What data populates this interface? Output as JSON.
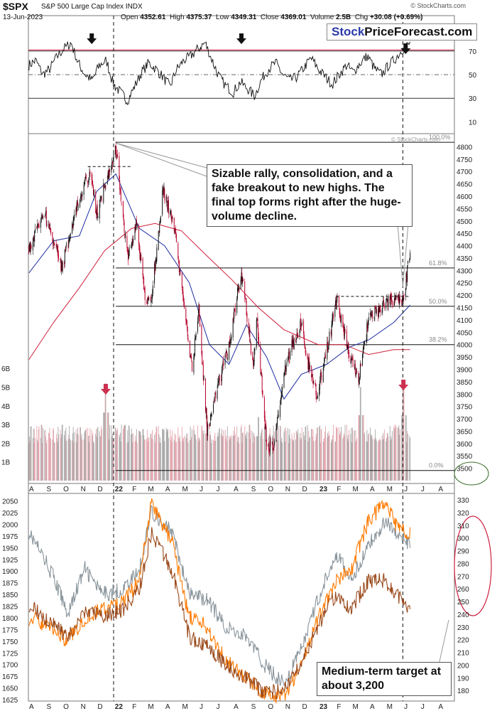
{
  "header": {
    "symbol": "$SPX",
    "name": "S&P 500 Large Cap Index  INDX",
    "date": "13-Jun-2023",
    "open_label": "Open",
    "open": "4352.61",
    "high_label": "High",
    "high": "4375.37",
    "low_label": "Low",
    "low": "4349.31",
    "close_label": "Close",
    "close": "4369.01",
    "volume_label": "Volume",
    "volume": "2.5B",
    "chg_label": "Chg",
    "chg": "+30.08 (+0.69%)",
    "copyright": "© StockCharts.com",
    "watermark": "© StockCharts.com"
  },
  "brand": {
    "part1": "Stock",
    "part2": "PriceForecast.com"
  },
  "annotations": {
    "main_note": "Sizable rally, consolidation, and a fake breakout to new highs. The final top forms right after the huge-volume decline.",
    "bottom_note": "Medium-term target at about 3,200"
  },
  "colors": {
    "price_up": "#111111",
    "price_down": "#b8002a",
    "ma_fast": "#1f2fa0",
    "ma_slow": "#d0203a",
    "vol_up": "#a8a8a8",
    "vol_down": "#e4a6ae",
    "series_gray": "#8a959c",
    "series_orange": "#ff7a00",
    "series_brown": "#9a4a1c",
    "highlight_red": "#cc2040",
    "ellipse_green": "#3a6e2a",
    "arrow": "#111111",
    "vol_arrow": "#cc3050"
  },
  "chart_data": [
    {
      "panel": "rsi",
      "type": "line",
      "ylim": [
        0,
        100
      ],
      "y_ticks": [
        "70",
        "50",
        "30",
        "10"
      ],
      "reference_lines": [
        70,
        50,
        30
      ],
      "x_range": [
        "2021-08",
        "2023-06-13"
      ],
      "values": [
        58,
        62,
        50,
        55,
        65,
        72,
        77,
        60,
        50,
        45,
        58,
        62,
        42,
        35,
        28,
        40,
        52,
        60,
        55,
        48,
        40,
        55,
        62,
        66,
        72,
        77,
        62,
        48,
        40,
        35,
        44,
        38,
        32,
        46,
        55,
        60,
        50,
        45,
        48,
        56,
        64,
        55,
        48,
        42,
        50,
        58,
        52,
        60,
        66,
        55,
        50,
        58,
        64,
        72,
        76
      ]
    },
    {
      "panel": "price",
      "type": "candlestick",
      "title": "$SPX S&P 500 Large Cap Index",
      "ylim": [
        3450,
        4830
      ],
      "y_ticks": [
        "4800",
        "4750",
        "4700",
        "4650",
        "4600",
        "4550",
        "4500",
        "4450",
        "4400",
        "4350",
        "4300",
        "4250",
        "4200",
        "4150",
        "4100",
        "4050",
        "4000",
        "3950",
        "3900",
        "3850",
        "3800",
        "3750",
        "3700",
        "3650",
        "3600",
        "3550",
        "3500"
      ],
      "x_ticks": [
        "A",
        "S",
        "O",
        "N",
        "D",
        "22",
        "F",
        "M",
        "A",
        "M",
        "J",
        "J",
        "A",
        "S",
        "O",
        "N",
        "D",
        "23",
        "F",
        "M",
        "A",
        "M",
        "J",
        "J",
        "A"
      ],
      "close_path": [
        [
          "2021-08-02",
          4400
        ],
        [
          "2021-08-31",
          4520
        ],
        [
          "2021-09-30",
          4310
        ],
        [
          "2021-10-08",
          4390
        ],
        [
          "2021-10-31",
          4600
        ],
        [
          "2021-11-20",
          4700
        ],
        [
          "2021-12-01",
          4530
        ],
        [
          "2021-12-31",
          4770
        ],
        [
          "2022-01-04",
          4800
        ],
        [
          "2022-01-25",
          4350
        ],
        [
          "2022-02-10",
          4500
        ],
        [
          "2022-02-24",
          4200
        ],
        [
          "2022-03-08",
          4170
        ],
        [
          "2022-03-29",
          4630
        ],
        [
          "2022-04-20",
          4450
        ],
        [
          "2022-05-20",
          3900
        ],
        [
          "2022-06-01",
          4150
        ],
        [
          "2022-06-16",
          3650
        ],
        [
          "2022-07-05",
          3830
        ],
        [
          "2022-07-25",
          4000
        ],
        [
          "2022-08-16",
          4300
        ],
        [
          "2022-09-06",
          3910
        ],
        [
          "2022-09-12",
          4110
        ],
        [
          "2022-09-30",
          3590
        ],
        [
          "2022-10-12",
          3580
        ],
        [
          "2022-10-31",
          3880
        ],
        [
          "2022-11-15",
          4000
        ],
        [
          "2022-12-01",
          4080
        ],
        [
          "2022-12-15",
          3900
        ],
        [
          "2022-12-28",
          3790
        ],
        [
          "2023-01-10",
          3920
        ],
        [
          "2023-02-02",
          4180
        ],
        [
          "2023-02-24",
          3970
        ],
        [
          "2023-03-13",
          3860
        ],
        [
          "2023-03-31",
          4100
        ],
        [
          "2023-04-28",
          4160
        ],
        [
          "2023-05-19",
          4190
        ],
        [
          "2023-05-31",
          4180
        ],
        [
          "2023-06-13",
          4369
        ]
      ],
      "ma_fast_path": [
        [
          "2021-08-02",
          4290
        ],
        [
          "2021-09-15",
          4420
        ],
        [
          "2021-10-31",
          4440
        ],
        [
          "2021-12-01",
          4620
        ],
        [
          "2022-01-04",
          4690
        ],
        [
          "2022-02-15",
          4470
        ],
        [
          "2022-04-01",
          4400
        ],
        [
          "2022-05-15",
          4250
        ],
        [
          "2022-06-20",
          4000
        ],
        [
          "2022-07-25",
          3920
        ],
        [
          "2022-08-25",
          4080
        ],
        [
          "2022-09-30",
          3950
        ],
        [
          "2022-10-31",
          3780
        ],
        [
          "2022-12-01",
          3880
        ],
        [
          "2023-01-15",
          3920
        ],
        [
          "2023-02-25",
          3990
        ],
        [
          "2023-04-01",
          4020
        ],
        [
          "2023-05-15",
          4090
        ],
        [
          "2023-06-13",
          4160
        ]
      ],
      "ma_slow_path": [
        [
          "2021-08-02",
          3940
        ],
        [
          "2021-09-15",
          4090
        ],
        [
          "2021-10-31",
          4230
        ],
        [
          "2021-12-15",
          4380
        ],
        [
          "2022-02-01",
          4470
        ],
        [
          "2022-03-15",
          4490
        ],
        [
          "2022-05-01",
          4460
        ],
        [
          "2022-06-15",
          4360
        ],
        [
          "2022-07-31",
          4260
        ],
        [
          "2022-09-15",
          4150
        ],
        [
          "2022-10-31",
          4060
        ],
        [
          "2022-12-31",
          4000
        ],
        [
          "2023-02-15",
          4000
        ],
        [
          "2023-03-31",
          3960
        ],
        [
          "2023-05-15",
          3980
        ],
        [
          "2023-06-13",
          3980
        ]
      ],
      "horizontal_lines": [
        {
          "y": 4818,
          "x0": "2022-01-04",
          "x1": "2023-06-13",
          "label": "100.0%"
        },
        {
          "y": 4310,
          "x0": "2022-01-04",
          "x1": "2023-06-13",
          "label": "61.8%"
        },
        {
          "y": 4155,
          "x0": "2022-01-04",
          "x1": "2023-06-13",
          "label": "50.0%"
        },
        {
          "y": 4000,
          "x0": "2022-01-04",
          "x1": "2023-06-13",
          "label": "38.2%"
        },
        {
          "y": 3491,
          "x0": "2022-01-04",
          "x1": "2023-06-13",
          "label": "0.0%"
        }
      ],
      "dashed_levels": [
        {
          "y": 4720,
          "x0": "2021-11-15",
          "x1": "2022-01-31"
        },
        {
          "y": 4195,
          "x0": "2023-02-01",
          "x1": "2023-06-13"
        }
      ],
      "vertical_markers": [
        "2021-12-31",
        "2023-05-31"
      ]
    },
    {
      "panel": "volume",
      "type": "bar",
      "y_ticks": [
        "6B",
        "5B",
        "4B",
        "3B",
        "2B",
        "1B"
      ],
      "ylim": [
        0,
        6.5
      ],
      "peaks_billion": [
        [
          "2021-12-17",
          5.2
        ],
        [
          "2022-06-17",
          3.5
        ],
        [
          "2022-09-16",
          3.4
        ],
        [
          "2023-03-17",
          5.0
        ],
        [
          "2023-06-01",
          5.0
        ]
      ],
      "typical_billion": [
        2.0,
        3.0
      ]
    },
    {
      "panel": "ratios",
      "type": "line",
      "left_axis": [
        1625,
        2060
      ],
      "right_axis": [
        170,
        330
      ],
      "left_ticks": [
        "2050",
        "2025",
        "2000",
        "1975",
        "1950",
        "1925",
        "1900",
        "1875",
        "1850",
        "1825",
        "1800",
        "1775",
        "1750",
        "1725",
        "1700",
        "1675",
        "1650",
        "1625"
      ],
      "right_ticks": [
        "330",
        "320",
        "310",
        "300",
        "290",
        "280",
        "270",
        "260",
        "250",
        "240",
        "230",
        "220",
        "210",
        "200",
        "190",
        "180"
      ],
      "x_ticks": [
        "A",
        "S",
        "O",
        "N",
        "D",
        "22",
        "F",
        "M",
        "A",
        "M",
        "J",
        "J",
        "A",
        "S",
        "O",
        "N",
        "D",
        "23",
        "F",
        "M",
        "A",
        "M",
        "J",
        "J",
        "A"
      ],
      "series": [
        {
          "color": "#8a959c",
          "path": [
            [
              "2021-08-02",
              1985
            ],
            [
              "2021-09-10",
              1900
            ],
            [
              "2021-10-10",
              1810
            ],
            [
              "2021-11-10",
              1905
            ],
            [
              "2021-12-10",
              1850
            ],
            [
              "2022-01-15",
              1860
            ],
            [
              "2022-02-15",
              1900
            ],
            [
              "2022-03-08",
              2030
            ],
            [
              "2022-04-15",
              1980
            ],
            [
              "2022-05-15",
              1850
            ],
            [
              "2022-06-15",
              1840
            ],
            [
              "2022-07-20",
              1780
            ],
            [
              "2022-08-25",
              1760
            ],
            [
              "2022-09-25",
              1700
            ],
            [
              "2022-10-31",
              1660
            ],
            [
              "2022-11-30",
              1730
            ],
            [
              "2022-12-31",
              1840
            ],
            [
              "2023-01-31",
              1940
            ],
            [
              "2023-02-28",
              1880
            ],
            [
              "2023-03-31",
              1955
            ],
            [
              "2023-04-30",
              2010
            ],
            [
              "2023-05-20",
              1980
            ],
            [
              "2023-06-13",
              1955
            ]
          ]
        },
        {
          "color": "#ff7a00",
          "path": [
            [
              "2021-08-02",
              1800
            ],
            [
              "2021-09-10",
              1780
            ],
            [
              "2021-10-10",
              1750
            ],
            [
              "2021-11-10",
              1800
            ],
            [
              "2021-12-10",
              1820
            ],
            [
              "2022-01-15",
              1830
            ],
            [
              "2022-02-15",
              1880
            ],
            [
              "2022-03-08",
              2045
            ],
            [
              "2022-04-15",
              1960
            ],
            [
              "2022-05-15",
              1800
            ],
            [
              "2022-06-15",
              1780
            ],
            [
              "2022-07-20",
              1710
            ],
            [
              "2022-08-25",
              1670
            ],
            [
              "2022-09-25",
              1640
            ],
            [
              "2022-10-31",
              1630
            ],
            [
              "2022-11-30",
              1700
            ],
            [
              "2022-12-31",
              1800
            ],
            [
              "2023-01-31",
              1880
            ],
            [
              "2023-02-28",
              1900
            ],
            [
              "2023-03-31",
              2010
            ],
            [
              "2023-04-30",
              2045
            ],
            [
              "2023-05-20",
              1995
            ],
            [
              "2023-06-13",
              1980
            ]
          ]
        },
        {
          "color": "#9a4a1c",
          "path": [
            [
              "2021-08-02",
              1830
            ],
            [
              "2021-09-10",
              1790
            ],
            [
              "2021-10-10",
              1760
            ],
            [
              "2021-11-10",
              1810
            ],
            [
              "2021-12-10",
              1805
            ],
            [
              "2022-01-15",
              1815
            ],
            [
              "2022-02-15",
              1860
            ],
            [
              "2022-03-08",
              1980
            ],
            [
              "2022-04-15",
              1900
            ],
            [
              "2022-05-15",
              1760
            ],
            [
              "2022-06-15",
              1740
            ],
            [
              "2022-07-20",
              1700
            ],
            [
              "2022-08-25",
              1670
            ],
            [
              "2022-09-25",
              1640
            ],
            [
              "2022-10-31",
              1645
            ],
            [
              "2022-11-30",
              1700
            ],
            [
              "2022-12-31",
              1780
            ],
            [
              "2023-01-31",
              1850
            ],
            [
              "2023-02-28",
              1820
            ],
            [
              "2023-03-31",
              1880
            ],
            [
              "2023-04-30",
              1880
            ],
            [
              "2023-05-20",
              1850
            ],
            [
              "2023-06-13",
              1820
            ]
          ]
        }
      ]
    }
  ]
}
